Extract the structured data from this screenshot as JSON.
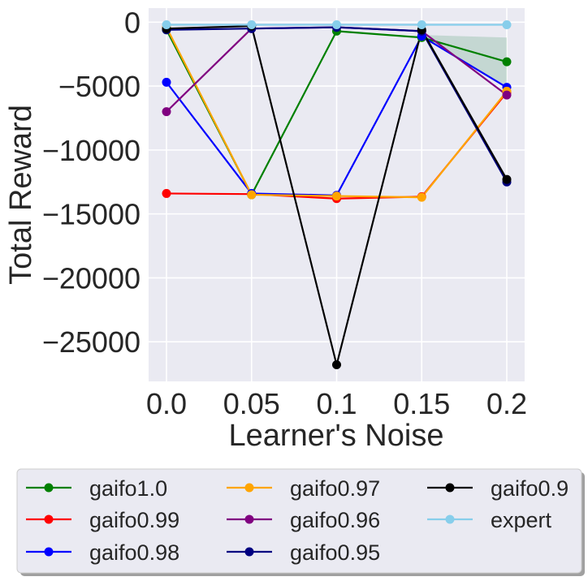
{
  "chart_data": {
    "type": "line",
    "title": "",
    "xlabel": "Learner's Noise",
    "ylabel": "Total Reward",
    "x": [
      0.0,
      0.05,
      0.1,
      0.15,
      0.2
    ],
    "x_tick_labels": [
      "0.0",
      "0.05",
      "0.1",
      "0.15",
      "0.2"
    ],
    "y_ticks": [
      0,
      -5000,
      -10000,
      -15000,
      -20000,
      -25000
    ],
    "y_tick_labels": [
      "0",
      "−5000",
      "−10000",
      "−15000",
      "−20000",
      "−25000"
    ],
    "ylim": [
      -28100,
      1100
    ],
    "xlim": [
      -0.0105,
      0.2105
    ],
    "grid": true,
    "legend_position": "below",
    "band": {
      "series": "gaifo1.0",
      "x": [
        0.15,
        0.2
      ],
      "upper": [
        -1000,
        -1200
      ],
      "lower": [
        -1200,
        -5000
      ],
      "color": "#2e8b57"
    },
    "series": [
      {
        "name": "gaifo1.0",
        "color": "#008000",
        "values": [
          -600,
          -13500,
          -700,
          -1200,
          -3100
        ]
      },
      {
        "name": "gaifo0.99",
        "color": "#ff0000",
        "values": [
          -13400,
          -13450,
          -13800,
          -13650,
          -5500
        ]
      },
      {
        "name": "gaifo0.98",
        "color": "#0000ff",
        "values": [
          -4700,
          -13400,
          -13550,
          -1100,
          -5100
        ]
      },
      {
        "name": "gaifo0.97",
        "color": "#ffa500",
        "values": [
          -400,
          -13500,
          -13600,
          -13700,
          -5400
        ]
      },
      {
        "name": "gaifo0.96",
        "color": "#800080",
        "values": [
          -7000,
          -500,
          -400,
          -700,
          -5700
        ]
      },
      {
        "name": "gaifo0.95",
        "color": "#000080",
        "values": [
          -600,
          -500,
          -400,
          -700,
          -12500
        ]
      },
      {
        "name": "gaifo0.9",
        "color": "#000000",
        "values": [
          -500,
          -300,
          -26800,
          -600,
          -12300
        ]
      },
      {
        "name": "expert",
        "color": "#87ceeb",
        "values": [
          -200,
          -200,
          -200,
          -200,
          -200
        ]
      }
    ]
  }
}
